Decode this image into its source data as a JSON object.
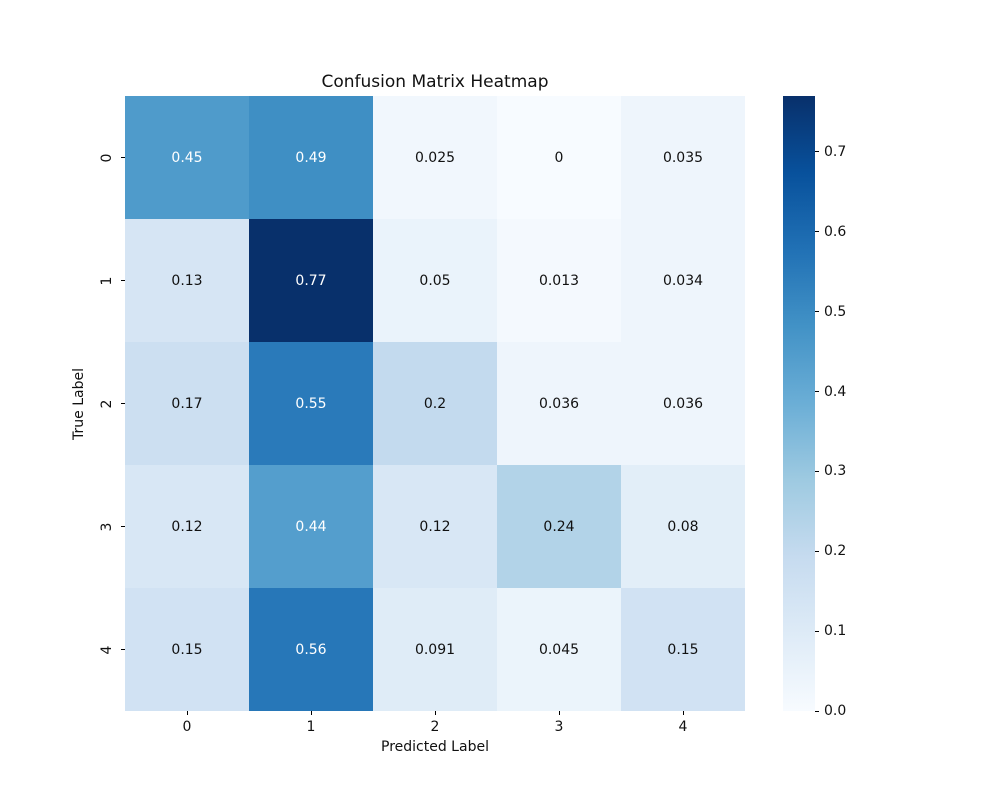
{
  "chart_data": {
    "type": "heatmap",
    "title": "Confusion Matrix Heatmap",
    "xlabel": "Predicted Label",
    "ylabel": "True Label",
    "x_tick_labels": [
      "0",
      "1",
      "2",
      "3",
      "4"
    ],
    "y_tick_labels": [
      "0",
      "1",
      "2",
      "3",
      "4"
    ],
    "values": [
      [
        0.45,
        0.49,
        0.025,
        0,
        0.035
      ],
      [
        0.13,
        0.77,
        0.05,
        0.013,
        0.034
      ],
      [
        0.17,
        0.55,
        0.2,
        0.036,
        0.036
      ],
      [
        0.12,
        0.44,
        0.12,
        0.24,
        0.08
      ],
      [
        0.15,
        0.56,
        0.091,
        0.045,
        0.15
      ]
    ],
    "cell_labels": [
      [
        "0.45",
        "0.49",
        "0.025",
        "0",
        "0.035"
      ],
      [
        "0.13",
        "0.77",
        "0.05",
        "0.013",
        "0.034"
      ],
      [
        "0.17",
        "0.55",
        "0.2",
        "0.036",
        "0.036"
      ],
      [
        "0.12",
        "0.44",
        "0.12",
        "0.24",
        "0.08"
      ],
      [
        "0.15",
        "0.56",
        "0.091",
        "0.045",
        "0.15"
      ]
    ],
    "vmin": 0,
    "vmax": 0.77,
    "colormap": "Blues",
    "colormap_colors": [
      "#f7fbff",
      "#deebf7",
      "#c6dbef",
      "#9ecae1",
      "#6baed6",
      "#4292c6",
      "#2171b5",
      "#08519c",
      "#08306b"
    ],
    "annotation_text_colors": {
      "dark": "#111111",
      "light": "#ffffff"
    },
    "colorbar_ticks": [
      {
        "label": "0.0",
        "value": 0.0
      },
      {
        "label": "0.1",
        "value": 0.1
      },
      {
        "label": "0.2",
        "value": 0.2
      },
      {
        "label": "0.3",
        "value": 0.3
      },
      {
        "label": "0.4",
        "value": 0.4
      },
      {
        "label": "0.5",
        "value": 0.5
      },
      {
        "label": "0.6",
        "value": 0.6
      },
      {
        "label": "0.7",
        "value": 0.7
      }
    ],
    "layout": {
      "grid": false,
      "legend": false,
      "colorbar_position": "right"
    }
  }
}
